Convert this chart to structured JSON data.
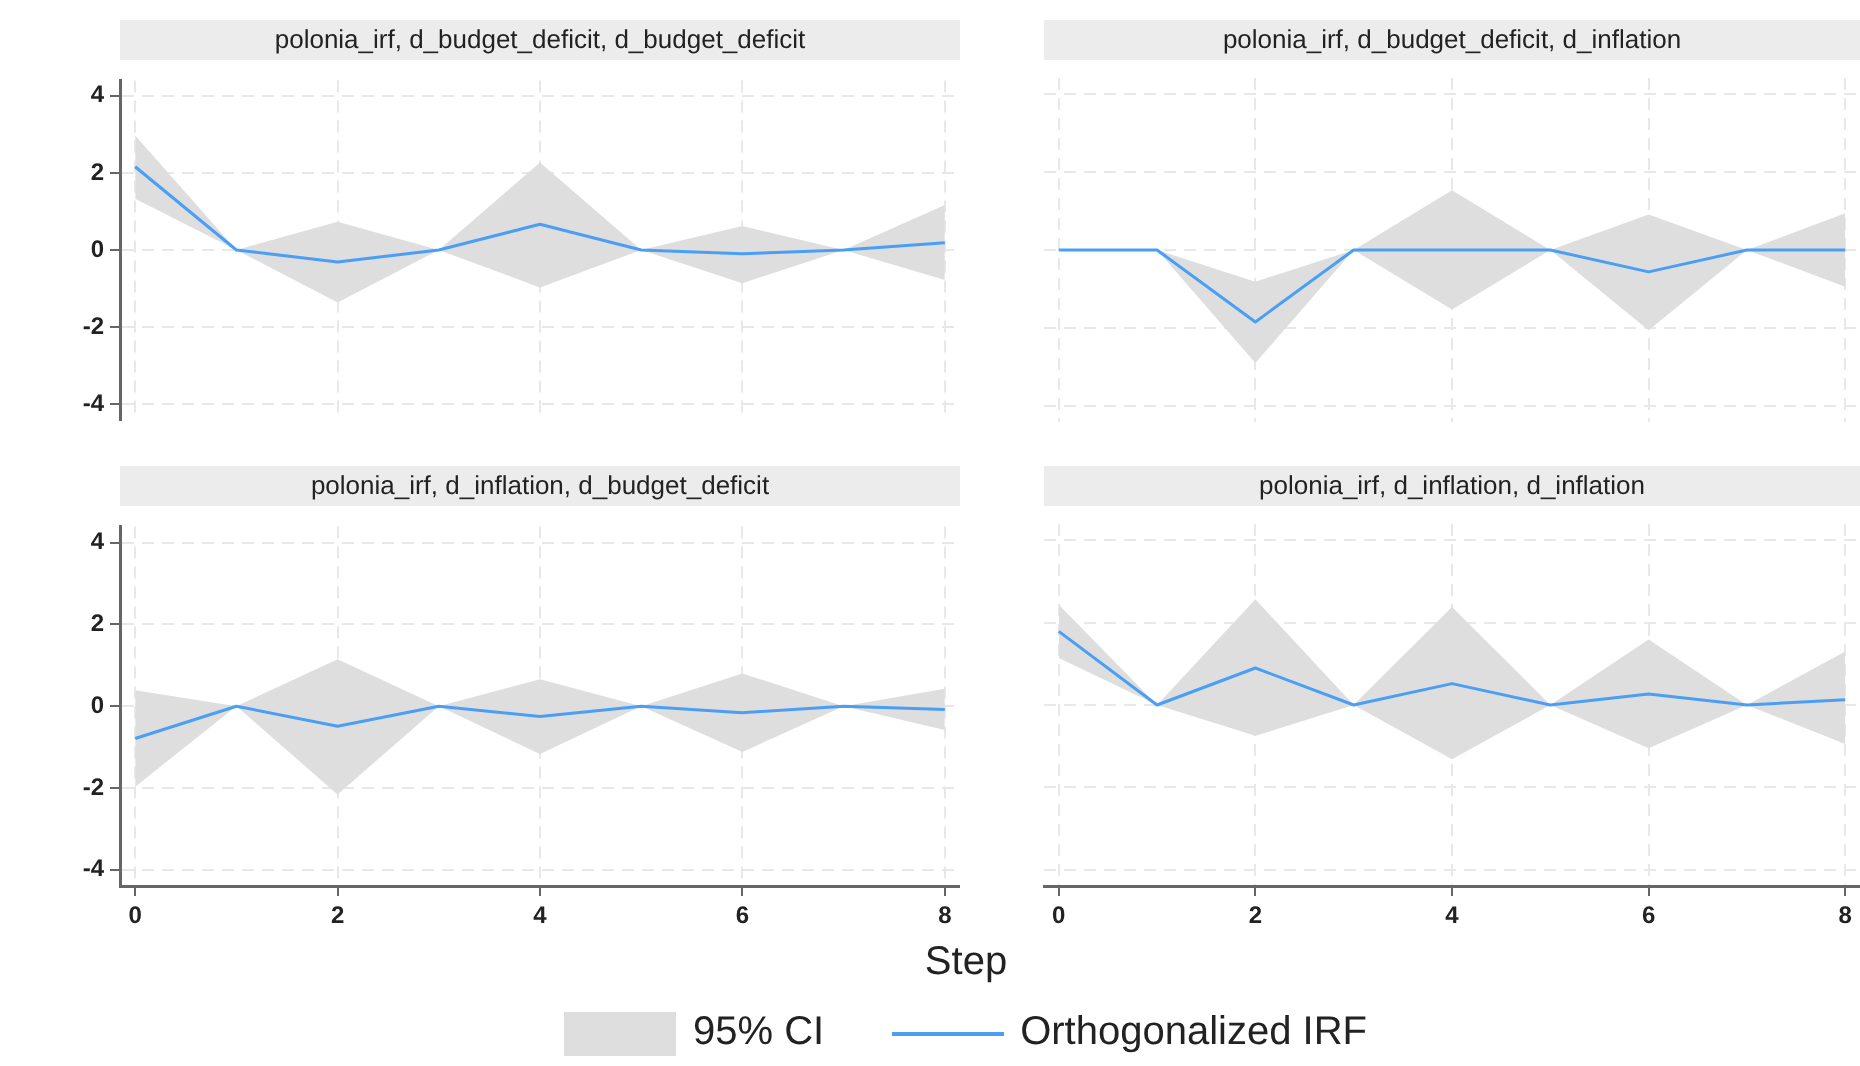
{
  "chart_data": [
    {
      "type": "line",
      "title": "polonia_irf, d_budget_deficit, d_budget_deficit",
      "x": [
        0,
        1,
        2,
        3,
        4,
        5,
        6,
        7,
        8
      ],
      "xlim": [
        -0.15,
        8.15
      ],
      "xticks": [
        0,
        2,
        4,
        6,
        8
      ],
      "ylim": [
        -4.4,
        4.4
      ],
      "yticks": [
        -4,
        -2,
        0,
        2,
        4
      ],
      "grid": true,
      "tick_labels": "y",
      "legend": "bottom",
      "annotations": [
        "95% CI"
      ],
      "series": [
        {
          "name": "Orthogonalized IRF",
          "color": "#4a9ff5",
          "values": [
            2.16,
            0,
            -0.31,
            0,
            0.67,
            0,
            -0.1,
            0,
            0.19
          ],
          "lower": [
            1.33,
            0,
            -1.36,
            0,
            -0.97,
            0,
            -0.86,
            0,
            -0.78
          ],
          "upper": [
            2.97,
            0,
            0.73,
            0,
            2.27,
            0,
            0.62,
            0,
            1.17
          ]
        }
      ]
    },
    {
      "type": "line",
      "title": "polonia_irf, d_budget_deficit, d_inflation",
      "x": [
        0,
        1,
        2,
        3,
        4,
        5,
        6,
        7,
        8
      ],
      "xlim": [
        -0.15,
        8.15
      ],
      "xticks": [
        0,
        2,
        4,
        6,
        8
      ],
      "ylim": [
        -4.4,
        4.4
      ],
      "yticks": [
        -4,
        -2,
        0,
        2,
        4
      ],
      "grid": true,
      "tick_labels": false,
      "series": [
        {
          "color": "#4a9ff5",
          "values": [
            0,
            0,
            -1.84,
            0,
            0,
            0,
            -0.56,
            0,
            0
          ],
          "lower": [
            0,
            0,
            -2.89,
            0,
            -1.52,
            0,
            -2.05,
            0,
            -0.94
          ],
          "upper": [
            0,
            0,
            -0.81,
            0,
            1.53,
            0,
            0.91,
            0,
            0.94
          ]
        }
      ]
    },
    {
      "type": "line",
      "title": "polonia_irf, d_inflation, d_budget_deficit",
      "xlabel": "Step",
      "x": [
        0,
        1,
        2,
        3,
        4,
        5,
        6,
        7,
        8
      ],
      "xlim": [
        -0.15,
        8.15
      ],
      "xticks": [
        0,
        2,
        4,
        6,
        8
      ],
      "ylim": [
        -4.4,
        4.4
      ],
      "yticks": [
        -4,
        -2,
        0,
        2,
        4
      ],
      "grid": true,
      "series": [
        {
          "color": "#4a9ff5",
          "values": [
            -0.79,
            0,
            -0.49,
            0,
            -0.25,
            0,
            -0.16,
            0,
            -0.08
          ],
          "lower": [
            -1.97,
            0,
            -2.16,
            0,
            -1.17,
            0,
            -1.12,
            0,
            -0.58
          ],
          "upper": [
            0.39,
            0,
            1.15,
            0,
            0.66,
            0,
            0.8,
            0,
            0.43
          ]
        }
      ]
    },
    {
      "type": "line",
      "title": "polonia_irf, d_inflation, d_inflation",
      "x": [
        0,
        1,
        2,
        3,
        4,
        5,
        6,
        7,
        8
      ],
      "xlim": [
        -0.15,
        8.15
      ],
      "xticks": [
        0,
        2,
        4,
        6,
        8
      ],
      "ylim": [
        -4.4,
        4.4
      ],
      "yticks": [
        -4,
        -2,
        0,
        2,
        4
      ],
      "grid": true,
      "tick_labels": "x",
      "series": [
        {
          "color": "#4a9ff5",
          "values": [
            1.79,
            0,
            0.9,
            0,
            0.52,
            0,
            0.27,
            0,
            0.13
          ],
          "lower": [
            1.14,
            0,
            -0.75,
            0,
            -1.32,
            0,
            -1.05,
            0,
            -0.95
          ],
          "upper": [
            2.44,
            0,
            2.57,
            0,
            2.38,
            0,
            1.59,
            0,
            1.3
          ]
        }
      ]
    }
  ]
}
